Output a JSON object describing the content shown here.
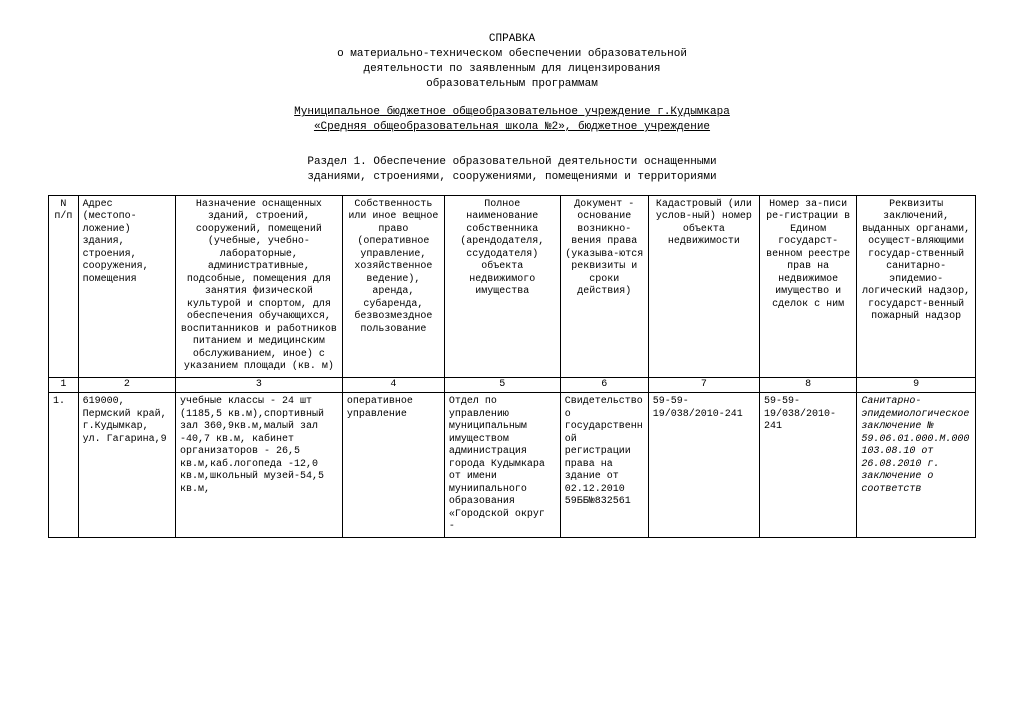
{
  "header": {
    "title1": "СПРАВКА",
    "title2": "о материально-техническом обеспечении образовательной",
    "title3": "деятельности по заявленным для лицензирования",
    "title4": "образовательным программам"
  },
  "institution": {
    "line1": "Муниципальное бюджетное общеобразовательное учреждение г.Кудымкара",
    "line2": "«Средняя общеобразовательная школа №2»,  бюджетное учреждение"
  },
  "section": {
    "line1": "Раздел   1.   Обеспечение   образовательной   деятельности  оснащенными",
    "line2": "зданиями, строениями, сооружениями, помещениями и территориями"
  },
  "table": {
    "columns": [
      "N п/п",
      "Адрес (местопо-ложение) здания, строения, сооружения, помещения",
      "Назначение оснащенных зданий, строений, сооружений, помещений (учебные, учебно-лабораторные, административные, подсобные, помещения для занятия физической культурой и спортом, для обеспечения обучающихся, воспитанников и работников питанием и медицинским обслуживанием, иное) с указанием площади (кв. м)",
      "Собственность или иное вещное право (оперативное управление, хозяйственное ведение), аренда, субаренда, безвозмездное пользование",
      "Полное наименование собственника (арендодателя, ссудодателя) объекта недвижимого имущества",
      "Документ - основание возникно-вения права (указыва-ются реквизиты и сроки действия)",
      "Кадастровый (или услов-ный) номер объекта недвижимости",
      "Номер за-писи ре-гистрации в Едином государст-венном реестре прав на недвижимое имущество и сделок с ним",
      "Реквизиты заключений, выданных органами, осущест-вляющими государ-ственный санитарно-эпидемио-логический надзор, государст-венный пожарный надзор"
    ],
    "numrow": [
      "1",
      "2",
      "3",
      "4",
      "5",
      "6",
      "7",
      "8",
      "9"
    ],
    "row1": {
      "c0": "1.",
      "c1": "619000, Пермский край, г.Кудымкар, ул. Гагарина,9",
      "c2": "учебные классы - 24 шт (1185,5 кв.м),спортивный зал 360,9кв.м,малый зал -40,7 кв.м, кабинет организаторов - 26,5 кв.м,каб.логопеда -12,0 кв.м,школьный музей-54,5 кв.м,",
      "c3": "оперативное управление",
      "c4": "Отдел по управлению муниципальным имуществом администрация города Кудымкара от имени муниипального образования «Городской округ -",
      "c5": "Свидетельство о государственной регистрации права на здание от 02.12.2010 59ББ№832561",
      "c6": "59-59-19/038/2010-241",
      "c7": "59-59-19/038/2010-241",
      "c8": "Санитарно-эпидемиологическое заключение № 59.06.01.000.М.000103.08.10 от 26.08.2010 г. заключение о соответств"
    }
  }
}
